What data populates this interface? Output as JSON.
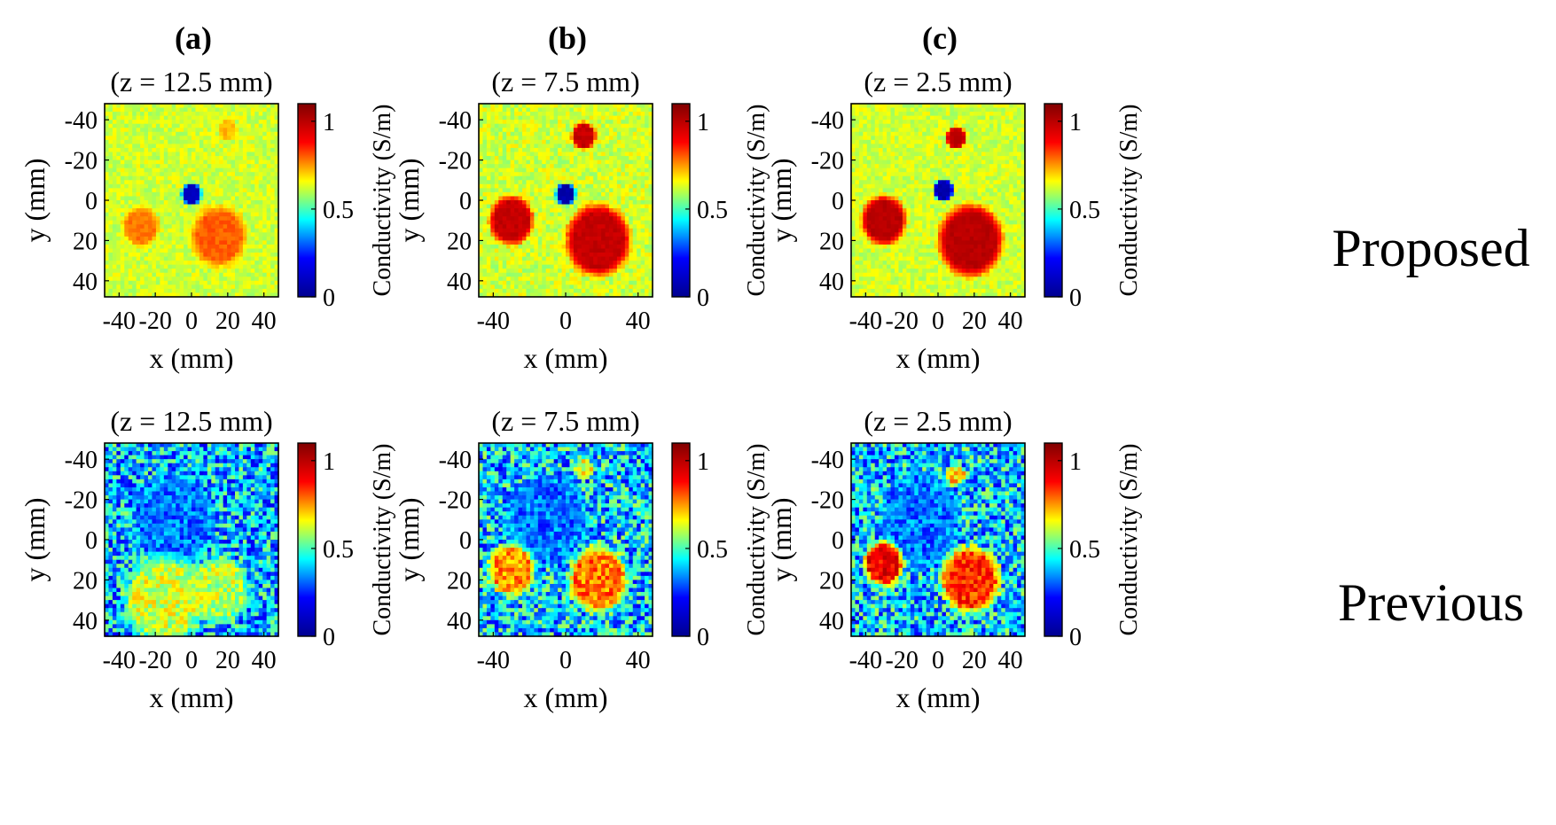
{
  "figure": {
    "column_labels": [
      "(a)",
      "(b)",
      "(c)"
    ],
    "row_labels": [
      "Proposed",
      "Previous"
    ]
  },
  "chart_data": {
    "type": "heatmap",
    "description_units": {
      "x": "mm",
      "y": "mm",
      "color": "S/m"
    },
    "xlabel": "x (mm)",
    "ylabel": "y (mm)",
    "colorbar_label": "Conductivity (S/m)",
    "colorbar_ticks": [
      "0",
      "0.5",
      "1"
    ],
    "colorbar_range": [
      0,
      1.1
    ],
    "colormap": [
      "#00008f",
      "#0000ff",
      "#00ffff",
      "#ffff00",
      "#ff0000",
      "#800000"
    ],
    "xlim": [
      -48,
      48
    ],
    "ylim": [
      -48,
      48
    ],
    "y_ticks": [
      "-40",
      "-20",
      "0",
      "20",
      "40"
    ],
    "x_ticks_full": [
      "-40",
      "-20",
      "0",
      "20",
      "40"
    ],
    "x_ticks_sparse": [
      "-40",
      "0",
      "40"
    ],
    "panels": [
      {
        "id": "a-proposed",
        "column": 0,
        "row": 0,
        "title": "(z = 12.5 mm)",
        "method": "Proposed",
        "x_ticks": "full",
        "background": 0.62,
        "noise": 0.05,
        "inclusions": [
          {
            "cx": -28,
            "cy": 13,
            "r": 9,
            "value": 0.78
          },
          {
            "cx": 15,
            "cy": 18,
            "r": 14,
            "value": 0.8
          },
          {
            "cx": 20,
            "cy": -35,
            "r": 5,
            "value": 0.72
          },
          {
            "cx": 0,
            "cy": -3,
            "r": 5,
            "value": 0.1
          }
        ]
      },
      {
        "id": "b-proposed",
        "column": 1,
        "row": 0,
        "title": "(z = 7.5 mm)",
        "method": "Proposed",
        "x_ticks": "sparse",
        "background": 0.62,
        "noise": 0.06,
        "inclusions": [
          {
            "cx": -30,
            "cy": 10,
            "r": 11,
            "value": 0.98
          },
          {
            "cx": 18,
            "cy": 20,
            "r": 16,
            "value": 0.98
          },
          {
            "cx": 10,
            "cy": -32,
            "r": 6,
            "value": 0.98
          },
          {
            "cx": 0,
            "cy": -3,
            "r": 5,
            "value": 0.05
          }
        ]
      },
      {
        "id": "c-proposed",
        "column": 2,
        "row": 0,
        "title": "(z = 2.5 mm)",
        "method": "Proposed",
        "x_ticks": "full",
        "background": 0.62,
        "noise": 0.05,
        "inclusions": [
          {
            "cx": -30,
            "cy": 10,
            "r": 11,
            "value": 1.0
          },
          {
            "cx": 18,
            "cy": 20,
            "r": 16,
            "value": 1.0
          },
          {
            "cx": 10,
            "cy": -31,
            "r": 5,
            "value": 1.0
          },
          {
            "cx": 3,
            "cy": -5,
            "r": 5,
            "value": 0.05
          }
        ]
      },
      {
        "id": "a-previous",
        "column": 0,
        "row": 1,
        "title": "(z = 12.5 mm)",
        "method": "Previous",
        "x_ticks": "full",
        "background": 0.38,
        "noise": 0.2,
        "inclusions": [
          {
            "cx": -10,
            "cy": -10,
            "r": 20,
            "value": 0.32
          },
          {
            "cx": -15,
            "cy": 30,
            "r": 20,
            "value": 0.62
          },
          {
            "cx": 15,
            "cy": 25,
            "r": 15,
            "value": 0.6
          }
        ]
      },
      {
        "id": "b-previous",
        "column": 1,
        "row": 1,
        "title": "(z = 7.5 mm)",
        "method": "Previous",
        "x_ticks": "sparse",
        "background": 0.4,
        "noise": 0.2,
        "inclusions": [
          {
            "cx": -10,
            "cy": -10,
            "r": 20,
            "value": 0.32
          },
          {
            "cx": -30,
            "cy": 15,
            "r": 12,
            "value": 0.75
          },
          {
            "cx": 18,
            "cy": 20,
            "r": 15,
            "value": 0.78
          },
          {
            "cx": 10,
            "cy": -35,
            "r": 5,
            "value": 0.65
          }
        ]
      },
      {
        "id": "c-previous",
        "column": 2,
        "row": 1,
        "title": "(z = 2.5 mm)",
        "method": "Previous",
        "x_ticks": "full",
        "background": 0.4,
        "noise": 0.2,
        "inclusions": [
          {
            "cx": -10,
            "cy": -10,
            "r": 20,
            "value": 0.32
          },
          {
            "cx": -30,
            "cy": 12,
            "r": 10,
            "value": 0.92
          },
          {
            "cx": 18,
            "cy": 20,
            "r": 15,
            "value": 0.85
          },
          {
            "cx": 10,
            "cy": -32,
            "r": 5,
            "value": 0.7
          }
        ]
      }
    ]
  }
}
